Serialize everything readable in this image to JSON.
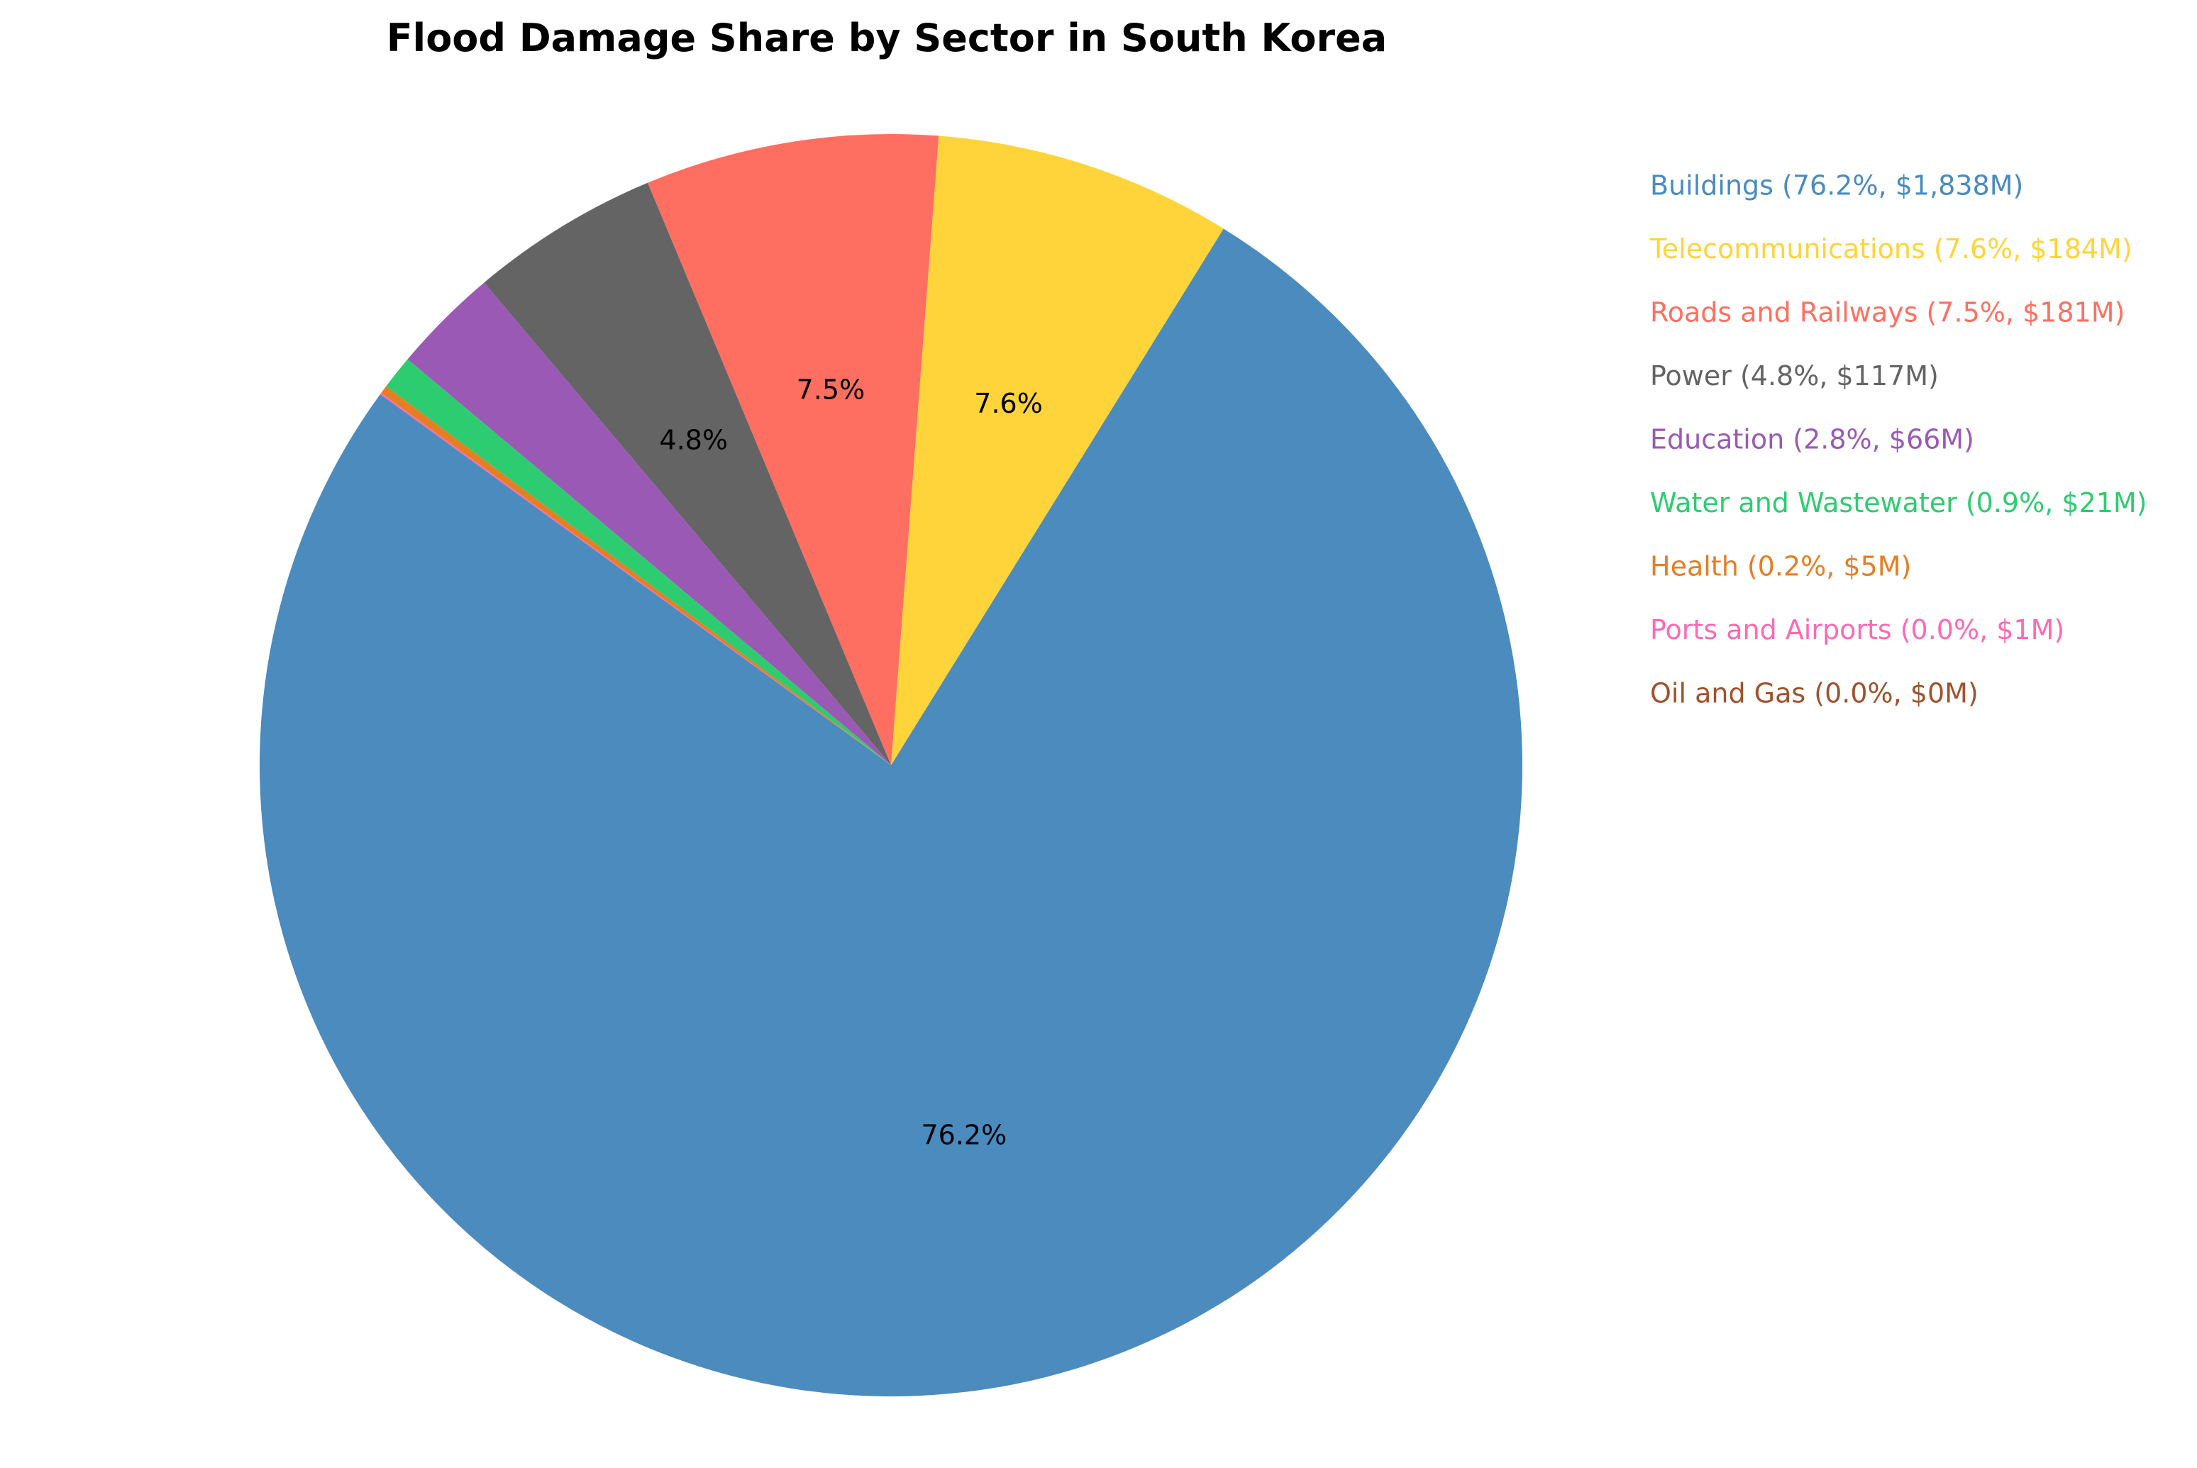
{
  "chart_data": {
    "type": "pie",
    "title": "Flood Damage Share by Sector in South Korea",
    "start_angle_deg": 144,
    "direction": "counterclockwise",
    "slices": [
      {
        "label": "Buildings",
        "percent": 76.2,
        "value_musd": 1838,
        "legend": "Buildings (76.2%, $1,838M)",
        "pct_label": "76.2%",
        "color": "#4B8BBE"
      },
      {
        "label": "Telecommunications",
        "percent": 7.6,
        "value_musd": 184,
        "legend": "Telecommunications (7.6%, $184M)",
        "pct_label": "7.6%",
        "color": "#FFD43B"
      },
      {
        "label": "Roads and Railways",
        "percent": 7.5,
        "value_musd": 181,
        "legend": "Roads and Railways (7.5%, $181M)",
        "pct_label": "7.5%",
        "color": "#FF6F61"
      },
      {
        "label": "Power",
        "percent": 4.8,
        "value_musd": 117,
        "legend": "Power (4.8%, $117M)",
        "pct_label": "4.8%",
        "color": "#646464"
      },
      {
        "label": "Education",
        "percent": 2.8,
        "value_musd": 66,
        "legend": "Education (2.8%, $66M)",
        "pct_label": "",
        "color": "#9B59B6"
      },
      {
        "label": "Water and Wastewater",
        "percent": 0.9,
        "value_musd": 21,
        "legend": "Water and Wastewater (0.9%, $21M)",
        "pct_label": "",
        "color": "#2ECC71"
      },
      {
        "label": "Health",
        "percent": 0.2,
        "value_musd": 5,
        "legend": "Health (0.2%, $5M)",
        "pct_label": "",
        "color": "#E67E22"
      },
      {
        "label": "Ports and Airports",
        "percent": 0.0,
        "value_musd": 1,
        "legend": "Ports and Airports (0.0%, $1M)",
        "pct_label": "",
        "color": "#FF69B4"
      },
      {
        "label": "Oil and Gas",
        "percent": 0.0,
        "value_musd": 0,
        "legend": "Oil and Gas (0.0%, $0M)",
        "pct_label": "",
        "color": "#A0522D"
      }
    ],
    "legend_position": "right"
  }
}
